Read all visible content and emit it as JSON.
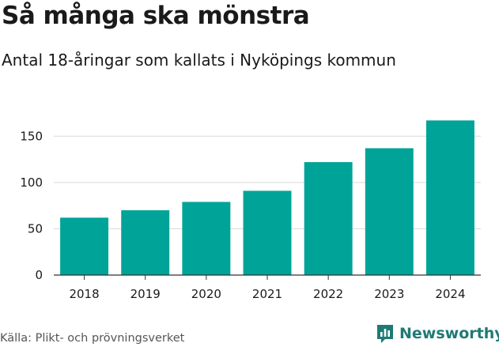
{
  "chart_data": {
    "type": "bar",
    "title": "Så många ska mönstra",
    "subtitle": "Antal 18-åringar som kallats i Nyköpings kommun",
    "categories": [
      "2018",
      "2019",
      "2020",
      "2021",
      "2022",
      "2023",
      "2024"
    ],
    "values": [
      62,
      70,
      79,
      91,
      122,
      137,
      167
    ],
    "ylim": [
      0,
      175
    ],
    "yticks": [
      0,
      50,
      100,
      150
    ],
    "grid": true,
    "bar_color": "#00a398"
  },
  "source": "Källa: Plikt- och prövningsverket",
  "brand": {
    "name": "Newsworthy",
    "icon": "newsworthy-logo-icon",
    "color": "#1f7a74"
  }
}
